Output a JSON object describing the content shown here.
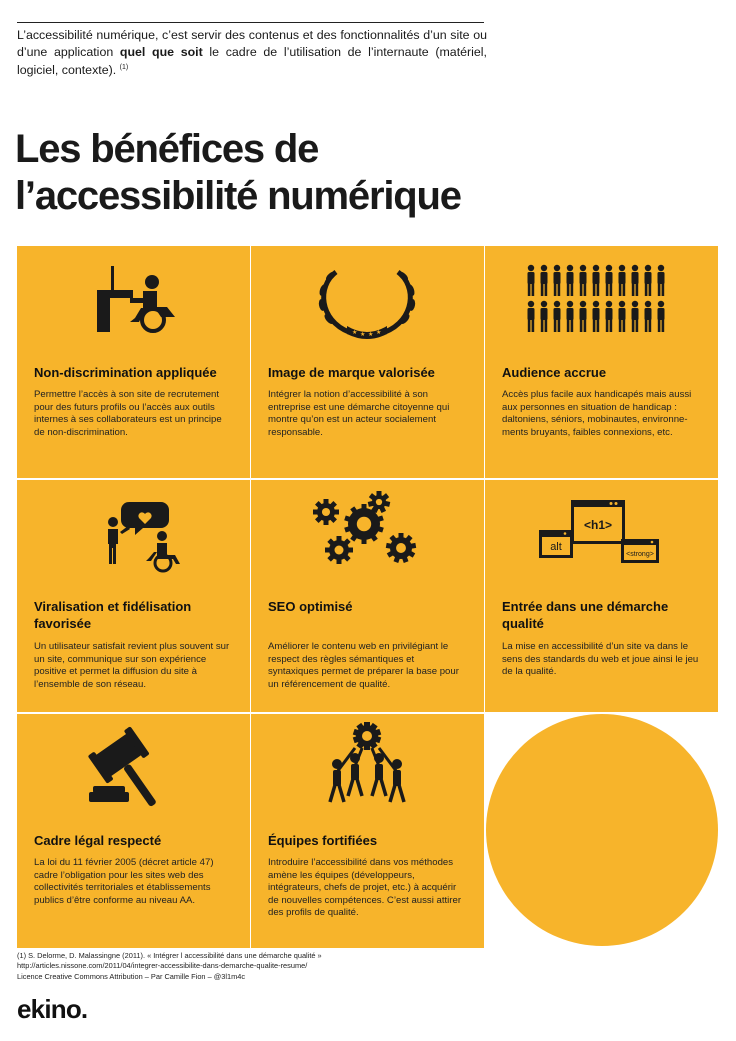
{
  "intro": {
    "before": "L’accessibilité numérique, c’est servir des contenus et des fonctionnalités d’un site ou d’une application ",
    "emphasis": "quel que soit",
    "after": " le cadre de l’utilisation de l’internaute (matériel, logiciel, contexte).",
    "note_ref": "(1)"
  },
  "title": {
    "line1": "Les bénéfices de",
    "line2": "l’accessibilité numérique"
  },
  "benefits": [
    {
      "title": "Non-discrimination appliquée",
      "icon": "wheelchair-desk-icon",
      "text": "Permettre l’accès à son site de recrutement pour des futurs profils ou l’accès aux outils internes à ses collaborateurs est un principe de non-discrimination."
    },
    {
      "title": "Image de marque valorisée",
      "icon": "laurel-wreath-icon",
      "text": "Intégrer la notion d’accessibilité à son entreprise est une démarche citoyenne qui montre qu’on est un acteur socialement responsable."
    },
    {
      "title": "Audience accrue",
      "icon": "crowd-icon",
      "text": "Accès plus facile aux handicapés mais aussi aux personnes en situation de handicap : daltoniens, séniors, mobinautes, environne-ments bruyants, faibles connexions, etc."
    },
    {
      "title": "Viralisation et fidélisation favorisée",
      "icon": "conversation-icon",
      "text": "Un utilisateur satisfait revient plus souvent sur un site, communique sur son expérience positive et permet la diffusion du site à l’ensemble de son réseau."
    },
    {
      "title": "SEO optimisé",
      "icon": "gears-icon",
      "text": "Améliorer le contenu web en privilégiant le respect des règles sémantiques et syntaxiques permet de préparer la base pour un référencement de qualité."
    },
    {
      "title": "Entrée dans une démarche qualité",
      "icon": "html-windows-icon",
      "text": "La mise en accessibilité d’un site va dans le sens des standards du web et joue ainsi le jeu de la qualité.",
      "tags": {
        "h1": "<h1>",
        "alt": "alt",
        "strong": "<strong>"
      }
    },
    {
      "title": "Cadre légal respecté",
      "icon": "gavel-icon",
      "text": "La loi du 11 février 2005 (décret article 47) cadre l’obligation pour les sites web des collectivités territoriales et établissements publics d’être conforme au niveau AA."
    },
    {
      "title": "Équipes fortifiées",
      "icon": "team-gear-icon",
      "text": "Introduire l’accessibilité dans vos méthodes amène les équipes (développeurs, intégrateurs, chefs de projet, etc.) à acquérir de nouvelles compétences. C’est aussi attirer des profils de qualité."
    }
  ],
  "footnote": {
    "line1": "(1) S. Delorme, D. Malassingne (2011). « Intégrer l accessibilité dans une démarche qualité »",
    "line2": "http://articles.nissone.com/2011/04/integrer-accessibilite-dans-demarche-qualite-resume/",
    "line3": "Licence Creative Commons Attribution – Par Camille Fion – @3l1m4c"
  },
  "brand": {
    "logo": "ekino."
  },
  "colors": {
    "accent": "#f7b42b",
    "ink": "#1a1a1a",
    "background": "#ffffff"
  }
}
